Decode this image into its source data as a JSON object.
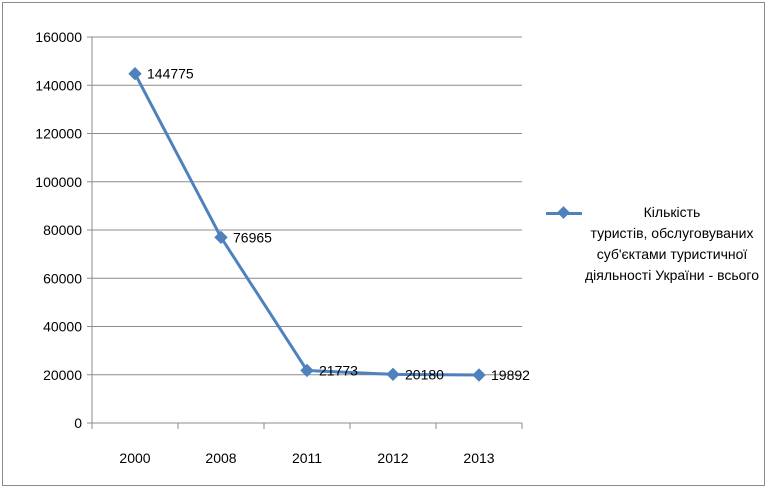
{
  "chart_data": {
    "type": "line",
    "categories": [
      "2000",
      "2008",
      "2011",
      "2012",
      "2013"
    ],
    "series": [
      {
        "name": "Кількість туристів, обслуговуваних суб'єктами туристичної діяльності України - всього",
        "values": [
          144775,
          76965,
          21773,
          20180,
          19892
        ],
        "color": "#4f81bd"
      }
    ],
    "data_labels": [
      "144775",
      "76965",
      "21773",
      "20180",
      "19892"
    ],
    "title": "",
    "xlabel": "",
    "ylabel": "",
    "ylim": [
      0,
      160000
    ],
    "yticks": [
      0,
      20000,
      40000,
      60000,
      80000,
      100000,
      120000,
      140000,
      160000
    ],
    "ytick_labels": [
      "0",
      "20000",
      "40000",
      "60000",
      "80000",
      "100000",
      "120000",
      "140000",
      "160000"
    ],
    "grid": "horizontal",
    "legend": {
      "position": "right",
      "lines": [
        "Кількість",
        "туристів, обслуговуваних",
        "суб'єктами туристичної",
        "діяльності України - всього"
      ]
    }
  }
}
